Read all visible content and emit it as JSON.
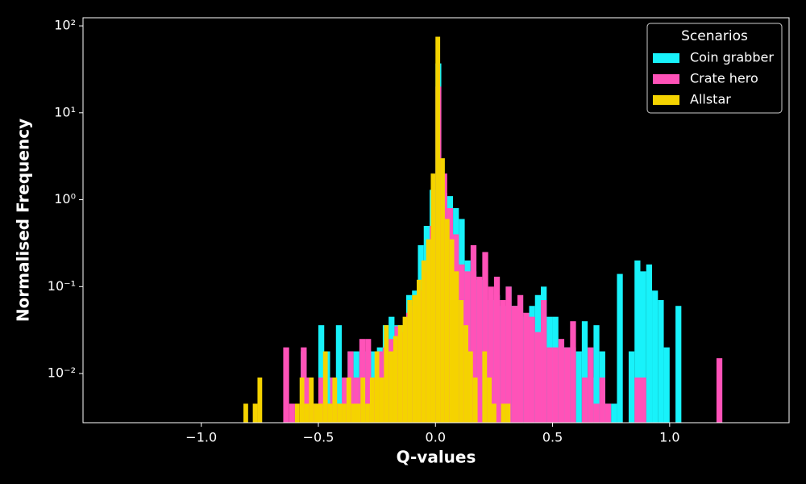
{
  "chart_data": {
    "type": "histogram",
    "xlabel": "Q-values",
    "ylabel": "Normalised Frequency",
    "xlim": [
      -1.505,
      1.51
    ],
    "ylim": [
      0.00272,
      124
    ],
    "log_y": true,
    "xticks": [
      {
        "value": -1,
        "label": "−1.0"
      },
      {
        "value": -0.5,
        "label": "−0.5"
      },
      {
        "value": 0,
        "label": "0.0"
      },
      0.5,
      {
        "value": 1,
        "label": "1.0"
      }
    ],
    "yticks": [
      {
        "value": 0.01,
        "label": "10⁻²"
      },
      {
        "value": 0.1,
        "label": "10⁻¹"
      },
      {
        "value": 1,
        "label": "10⁰"
      },
      {
        "value": 10,
        "label": "10¹"
      },
      {
        "value": 100,
        "label": "10²"
      }
    ],
    "legend_title": "Scenarios",
    "legend_position": "upper right",
    "series": [
      {
        "name": "Coin grabber",
        "color": "#18f2fa",
        "bins": [
          -0.6,
          -0.575,
          -0.55,
          -0.525,
          -0.5,
          -0.475,
          -0.45,
          -0.425,
          -0.4,
          -0.375,
          -0.35,
          -0.325,
          -0.3,
          -0.275,
          -0.25,
          -0.225,
          -0.2,
          -0.175,
          -0.15,
          -0.125,
          -0.1,
          -0.075,
          -0.05,
          -0.025,
          0,
          0.025,
          0.05,
          0.075,
          0.1,
          0.125,
          0.15,
          0.175,
          0.2,
          0.225,
          0.25,
          0.275,
          0.3,
          0.325,
          0.35,
          0.375,
          0.4,
          0.425,
          0.45,
          0.475,
          0.5,
          0.525,
          0.55,
          0.575,
          0.6,
          0.625,
          0.65,
          0.675,
          0.7,
          0.725,
          0.75,
          0.775,
          0.8,
          0.825,
          0.85,
          0.875,
          0.9,
          0.925,
          0.95,
          0.975,
          1,
          1.025,
          1.05,
          1.075
        ],
        "values": [
          0,
          0.018,
          0.009,
          0.0045,
          0.036,
          0.018,
          0.009,
          0.036,
          0.009,
          0.018,
          0.018,
          0.009,
          0.018,
          0.018,
          0.02,
          0.036,
          0.045,
          0.036,
          0.036,
          0.08,
          0.09,
          0.3,
          0.5,
          1.3,
          37,
          1.2,
          1.1,
          0.8,
          0.6,
          0.2,
          0.15,
          0.12,
          0.1,
          0.07,
          0.08,
          0.06,
          0.1,
          0.06,
          0.05,
          0.045,
          0.06,
          0.08,
          0.1,
          0.045,
          0.045,
          0.02,
          0.02,
          0.02,
          0.018,
          0.04,
          0.009,
          0.036,
          0.018,
          0.0045,
          0.0045,
          0.14,
          0,
          0.018,
          0.2,
          0.15,
          0.18,
          0.09,
          0.07,
          0.02,
          0,
          0.06,
          0
        ]
      },
      {
        "name": "Crate hero",
        "color": "#ff52b8",
        "bins": [
          -0.65,
          -0.625,
          -0.6,
          -0.575,
          -0.55,
          -0.525,
          -0.5,
          -0.475,
          -0.45,
          -0.425,
          -0.4,
          -0.375,
          -0.35,
          -0.325,
          -0.3,
          -0.275,
          -0.25,
          -0.225,
          -0.2,
          -0.175,
          -0.15,
          -0.125,
          -0.1,
          -0.075,
          -0.05,
          -0.025,
          0,
          0.025,
          0.05,
          0.075,
          0.1,
          0.125,
          0.15,
          0.175,
          0.2,
          0.225,
          0.25,
          0.275,
          0.3,
          0.325,
          0.35,
          0.375,
          0.4,
          0.425,
          0.45,
          0.475,
          0.5,
          0.525,
          0.55,
          0.575,
          0.6,
          0.625,
          0.65,
          0.675,
          0.7,
          0.725,
          0.75,
          0.775,
          0.8,
          0.825,
          0.85,
          0.875,
          0.9,
          0.925,
          0.95,
          0.975,
          1,
          1.025,
          1.05,
          1.075,
          1.1,
          1.125,
          1.15,
          1.175,
          1.2,
          1.225,
          1.25
        ],
        "values": [
          0.02,
          0.0045,
          0,
          0.02,
          0.009,
          0.0045,
          0.009,
          0.0045,
          0.009,
          0.0045,
          0.009,
          0.018,
          0.009,
          0.025,
          0.025,
          0.009,
          0.018,
          0.02,
          0.025,
          0.035,
          0.03,
          0.05,
          0.06,
          0.09,
          0.15,
          0.5,
          20,
          2,
          0.8,
          0.4,
          0.18,
          0.15,
          0.3,
          0.13,
          0.25,
          0.1,
          0.13,
          0.07,
          0.1,
          0.06,
          0.08,
          0.05,
          0.045,
          0.03,
          0.07,
          0.02,
          0.02,
          0.025,
          0.02,
          0.04,
          0,
          0.009,
          0.02,
          0.0045,
          0.009,
          0.0045,
          0,
          0,
          0,
          0,
          0.009,
          0.009,
          0,
          0,
          0,
          0,
          0,
          0,
          0,
          0,
          0,
          0,
          0,
          0,
          0.015,
          0
        ]
      },
      {
        "name": "Allstar",
        "color": "#f5d300",
        "bins": [
          -0.82,
          -0.8,
          -0.78,
          -0.76,
          -0.74,
          -0.72,
          -0.7,
          -0.68,
          -0.66,
          -0.64,
          -0.62,
          -0.6,
          -0.58,
          -0.56,
          -0.54,
          -0.52,
          -0.5,
          -0.48,
          -0.46,
          -0.44,
          -0.42,
          -0.4,
          -0.38,
          -0.36,
          -0.34,
          -0.32,
          -0.3,
          -0.28,
          -0.26,
          -0.24,
          -0.22,
          -0.2,
          -0.18,
          -0.16,
          -0.14,
          -0.12,
          -0.1,
          -0.08,
          -0.06,
          -0.04,
          -0.02,
          0,
          0.02,
          0.04,
          0.06,
          0.08,
          0.1,
          0.12,
          0.14,
          0.16,
          0.18,
          0.2,
          0.22,
          0.24,
          0.26,
          0.28,
          0.3,
          0.32
        ],
        "values": [
          0.0045,
          0,
          0.0045,
          0.009,
          0,
          0,
          0,
          0,
          0,
          0,
          0,
          0.0045,
          0.009,
          0.0045,
          0.009,
          0.0045,
          0.0045,
          0.018,
          0.0045,
          0.009,
          0.0045,
          0.0045,
          0.009,
          0.0045,
          0.0045,
          0.009,
          0.0045,
          0.009,
          0.018,
          0.009,
          0.036,
          0.018,
          0.027,
          0.036,
          0.045,
          0.07,
          0.08,
          0.12,
          0.2,
          0.35,
          2.0,
          75,
          3,
          0.6,
          0.35,
          0.15,
          0.07,
          0.036,
          0.018,
          0.009,
          0,
          0.018,
          0.009,
          0.0045,
          0,
          0.0045,
          0.0045
        ]
      }
    ]
  }
}
